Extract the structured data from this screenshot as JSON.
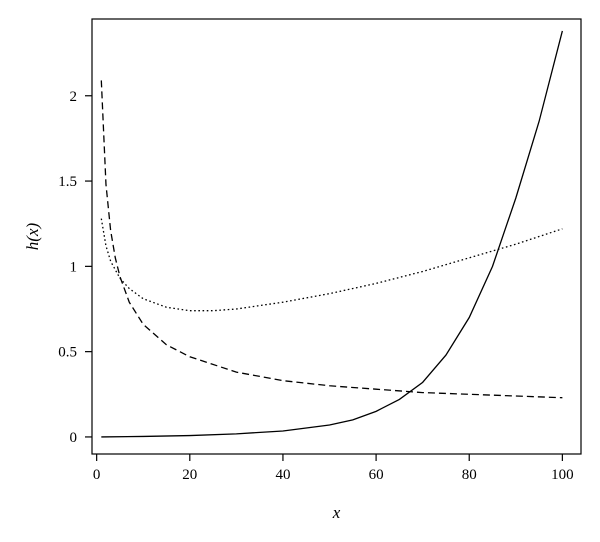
{
  "chart_data": {
    "type": "line",
    "title": "",
    "xlabel": "x",
    "ylabel": "h(x)",
    "xlim": [
      -1,
      104
    ],
    "ylim": [
      -0.1,
      2.45
    ],
    "x_ticks": [
      0,
      20,
      40,
      60,
      80,
      100
    ],
    "x_tick_labels": [
      "0",
      "20",
      "40",
      "60",
      "80",
      "100"
    ],
    "y_ticks": [
      0,
      0.5,
      1,
      1.5,
      2
    ],
    "y_tick_labels": [
      "0",
      "0.5",
      "1",
      "1.5",
      "2"
    ],
    "grid": false,
    "legend": "none",
    "series": [
      {
        "style": "solid",
        "color": "#000000",
        "x": [
          1,
          10,
          20,
          30,
          40,
          50,
          55,
          60,
          65,
          70,
          75,
          80,
          85,
          90,
          95,
          100
        ],
        "y": [
          0.0,
          0.003,
          0.008,
          0.018,
          0.035,
          0.07,
          0.1,
          0.15,
          0.22,
          0.32,
          0.48,
          0.7,
          1.0,
          1.4,
          1.85,
          2.38
        ]
      },
      {
        "style": "dashed",
        "color": "#000000",
        "x": [
          1,
          2,
          3,
          4,
          5,
          7,
          10,
          15,
          20,
          30,
          40,
          50,
          60,
          70,
          80,
          90,
          100
        ],
        "y": [
          2.09,
          1.48,
          1.21,
          1.05,
          0.94,
          0.79,
          0.66,
          0.54,
          0.47,
          0.38,
          0.33,
          0.3,
          0.28,
          0.26,
          0.25,
          0.24,
          0.23
        ]
      },
      {
        "style": "dotted",
        "color": "#000000",
        "x": [
          1,
          2,
          3,
          5,
          7,
          10,
          15,
          20,
          25,
          30,
          40,
          50,
          60,
          70,
          80,
          90,
          100
        ],
        "y": [
          1.28,
          1.12,
          1.03,
          0.93,
          0.87,
          0.81,
          0.76,
          0.74,
          0.74,
          0.75,
          0.79,
          0.84,
          0.9,
          0.97,
          1.05,
          1.13,
          1.22
        ]
      }
    ]
  }
}
